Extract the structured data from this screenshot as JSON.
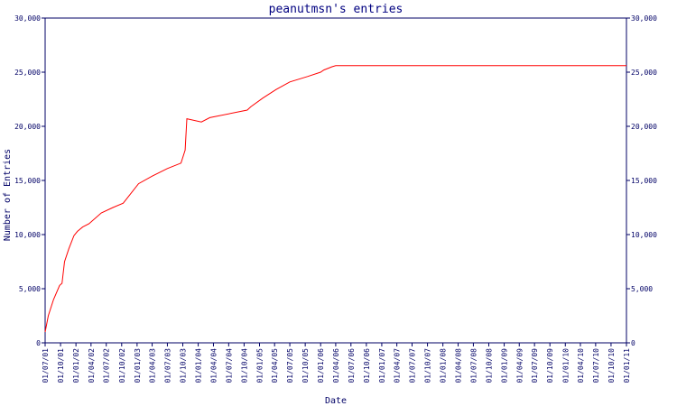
{
  "chart_data": {
    "type": "line",
    "title": "peanutmsn's entries",
    "xlabel": "Date",
    "ylabel": "Number of Entries",
    "ylim": [
      0,
      30000
    ],
    "y_ticks": [
      "0",
      "5,000",
      "10,000",
      "15,000",
      "20,000",
      "25,000",
      "30,000"
    ],
    "x_ticks": [
      "01/07/01",
      "01/10/01",
      "01/01/02",
      "01/04/02",
      "01/07/02",
      "01/10/02",
      "01/01/03",
      "01/04/03",
      "01/07/03",
      "01/10/03",
      "01/01/04",
      "01/04/04",
      "01/07/04",
      "01/10/04",
      "01/01/05",
      "01/04/05",
      "01/07/05",
      "01/10/05",
      "01/01/06",
      "01/04/06",
      "01/07/06",
      "01/10/06",
      "01/01/07",
      "01/04/07",
      "01/07/07",
      "01/10/07",
      "01/01/08",
      "01/04/08",
      "01/07/08",
      "01/10/08",
      "01/01/09",
      "01/04/09",
      "01/07/09",
      "01/10/09",
      "01/01/10",
      "01/04/10",
      "01/07/10",
      "01/10/10",
      "01/01/11"
    ],
    "grid": false,
    "line_color": "#ff0000",
    "axis_color": "#000066",
    "series": [
      {
        "x": [
          "2001-07-01",
          "2001-07-20",
          "2001-08-20",
          "2001-09-25",
          "2001-10-10",
          "2001-10-25",
          "2001-11-20",
          "2001-12-20",
          "2002-01-10",
          "2002-02-10",
          "2002-03-20",
          "2002-06-01",
          "2002-08-10",
          "2002-10-10",
          "2003-01-10",
          "2003-04-01",
          "2003-07-01",
          "2003-09-20",
          "2003-10-15",
          "2003-10-25",
          "2004-01-20",
          "2004-03-10",
          "2004-10-20",
          "2004-11-10",
          "2005-01-20",
          "2005-04-10",
          "2005-07-01",
          "2005-10-15",
          "2006-01-01",
          "2006-01-20",
          "2006-03-10",
          "2006-04-01",
          "2011-01-01"
        ],
        "values": [
          1000,
          2500,
          4000,
          5300,
          5500,
          7500,
          8700,
          9900,
          10300,
          10700,
          11000,
          12000,
          12500,
          12900,
          14700,
          15400,
          16100,
          16600,
          17800,
          20700,
          20400,
          20800,
          21500,
          21800,
          22600,
          23400,
          24100,
          24600,
          25000,
          25200,
          25500,
          25600,
          25600
        ]
      }
    ]
  }
}
